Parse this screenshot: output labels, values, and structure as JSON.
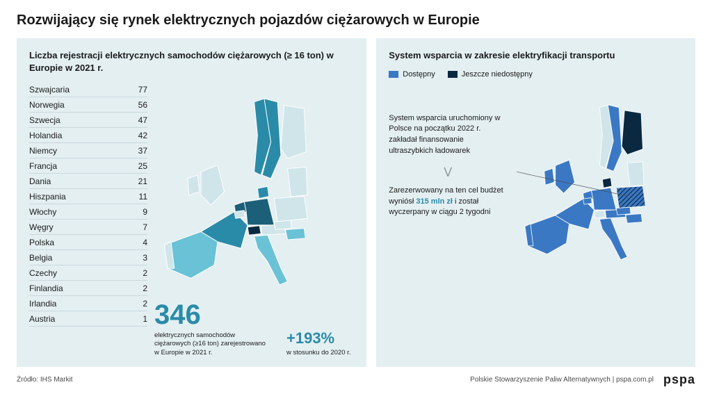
{
  "title": "Rozwijający się rynek elektrycznych pojazdów ciężarowych w Europie",
  "left": {
    "title": "Liczba rejestracji elektrycznych samochodów ciężarowych (≥ 16 ton) w Europie w 2021 r.",
    "rows": [
      {
        "country": "Szwajcaria",
        "value": "77"
      },
      {
        "country": "Norwegia",
        "value": "56"
      },
      {
        "country": "Szwecja",
        "value": "47"
      },
      {
        "country": "Holandia",
        "value": "42"
      },
      {
        "country": "Niemcy",
        "value": "37"
      },
      {
        "country": "Francja",
        "value": "25"
      },
      {
        "country": "Dania",
        "value": "21"
      },
      {
        "country": "Hiszpania",
        "value": "11"
      },
      {
        "country": "Włochy",
        "value": "9"
      },
      {
        "country": "Węgry",
        "value": "7"
      },
      {
        "country": "Polska",
        "value": "4"
      },
      {
        "country": "Belgia",
        "value": "3"
      },
      {
        "country": "Czechy",
        "value": "2"
      },
      {
        "country": "Finlandia",
        "value": "2"
      },
      {
        "country": "Irlandia",
        "value": "2"
      },
      {
        "country": "Austria",
        "value": "1"
      }
    ],
    "stat_big": "346",
    "stat_big_caption": "elektrycznych samochodów ciężarowych (≥16 ton) zarejestrowano w Europie w 2021 r.",
    "stat_pct": "+193%",
    "stat_pct_caption": "w stosunku do 2020 r.",
    "map_colors": {
      "scale_light": "#cfe5ea",
      "scale_mid": "#69c2d6",
      "scale_dark": "#2a8ba8",
      "scale_deep": "#1c5f78",
      "switzerland": "#0a2940",
      "background": "#e4eff2"
    }
  },
  "right": {
    "title": "System wsparcia w zakresie elektryfikacji transportu",
    "legend": {
      "available_label": "Dostępny",
      "available_color": "#3b78c4",
      "unavailable_label": "Jeszcze niedostępny",
      "unavailable_color": "#0a2940"
    },
    "note1": "System wsparcia uruchomiony w Polsce na początku 2022 r. zakładał finansowanie ultraszybkich ładowarek",
    "note2_pre": "Zarezerwowany na ten cel budżet wyniósł ",
    "note2_highlight": "315 mln zł",
    "note2_post": " i został wyczerpany w ciągu 2 tygodni",
    "map_colors": {
      "available": "#3b78c4",
      "unavailable": "#0a2940",
      "neutral": "#cfe5ea",
      "poland_hatch_a": "#3b78c4",
      "poland_hatch_b": "#0a2940"
    }
  },
  "footer": {
    "source": "Źródło: IHS Markit",
    "org": "Polskie Stowarzyszenie Paliw Alternatywnych | pspa.com.pl",
    "logo": "pspa"
  },
  "typography": {
    "title_fontsize": 20,
    "panel_title_fontsize": 13,
    "table_fontsize": 12,
    "stat_big_fontsize": 40,
    "stat_pct_fontsize": 22,
    "caption_fontsize": 9.5,
    "footer_fontsize": 10
  }
}
